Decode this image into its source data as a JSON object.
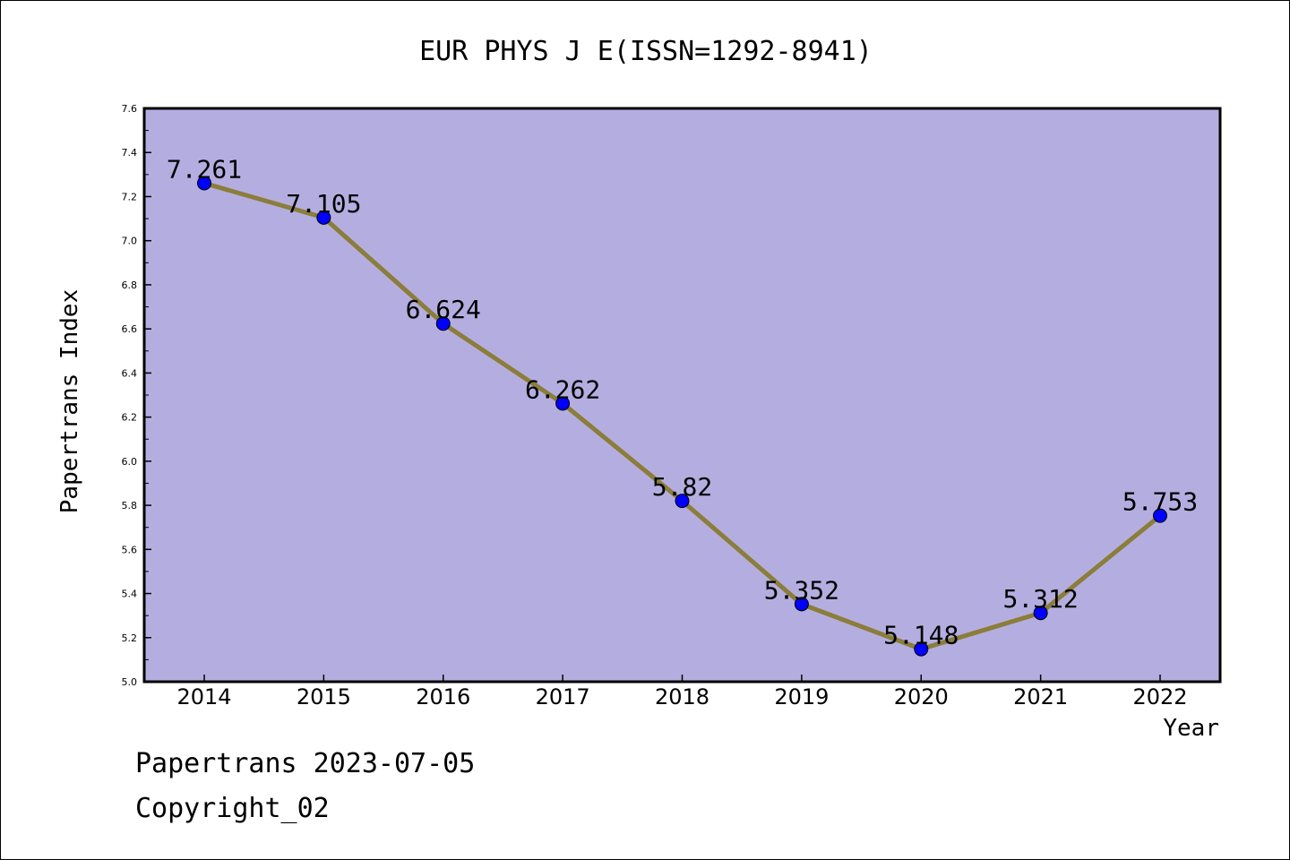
{
  "chart_data": {
    "type": "line",
    "title": "EUR PHYS J E(ISSN=1292-8941)",
    "xlabel": "Year",
    "ylabel": "Papertrans Index",
    "categories": [
      "2014",
      "2015",
      "2016",
      "2017",
      "2018",
      "2019",
      "2020",
      "2021",
      "2022"
    ],
    "series": [
      {
        "values": [
          7.261,
          7.105,
          6.624,
          6.262,
          5.82,
          5.352,
          5.148,
          5.312,
          5.753
        ],
        "labels": [
          "7.261",
          "7.105",
          "6.624",
          "6.262",
          "5.82",
          "5.352",
          "5.148",
          "5.312",
          "5.753"
        ]
      }
    ],
    "ylim": [
      5.0,
      7.6
    ],
    "yticks": [
      "5.0",
      "5.2",
      "5.4",
      "5.6",
      "5.8",
      "6.0",
      "6.2",
      "6.4",
      "6.6",
      "6.8",
      "7.0",
      "7.2",
      "7.4",
      "7.6"
    ],
    "grid": false,
    "colors": {
      "plot_background": "#b4aee0",
      "line": "#8b7d3a",
      "marker": "#0000ff",
      "frame": "#000000"
    }
  },
  "footer": {
    "line1": "Papertrans 2023-07-05",
    "line2": "Copyright_02"
  }
}
